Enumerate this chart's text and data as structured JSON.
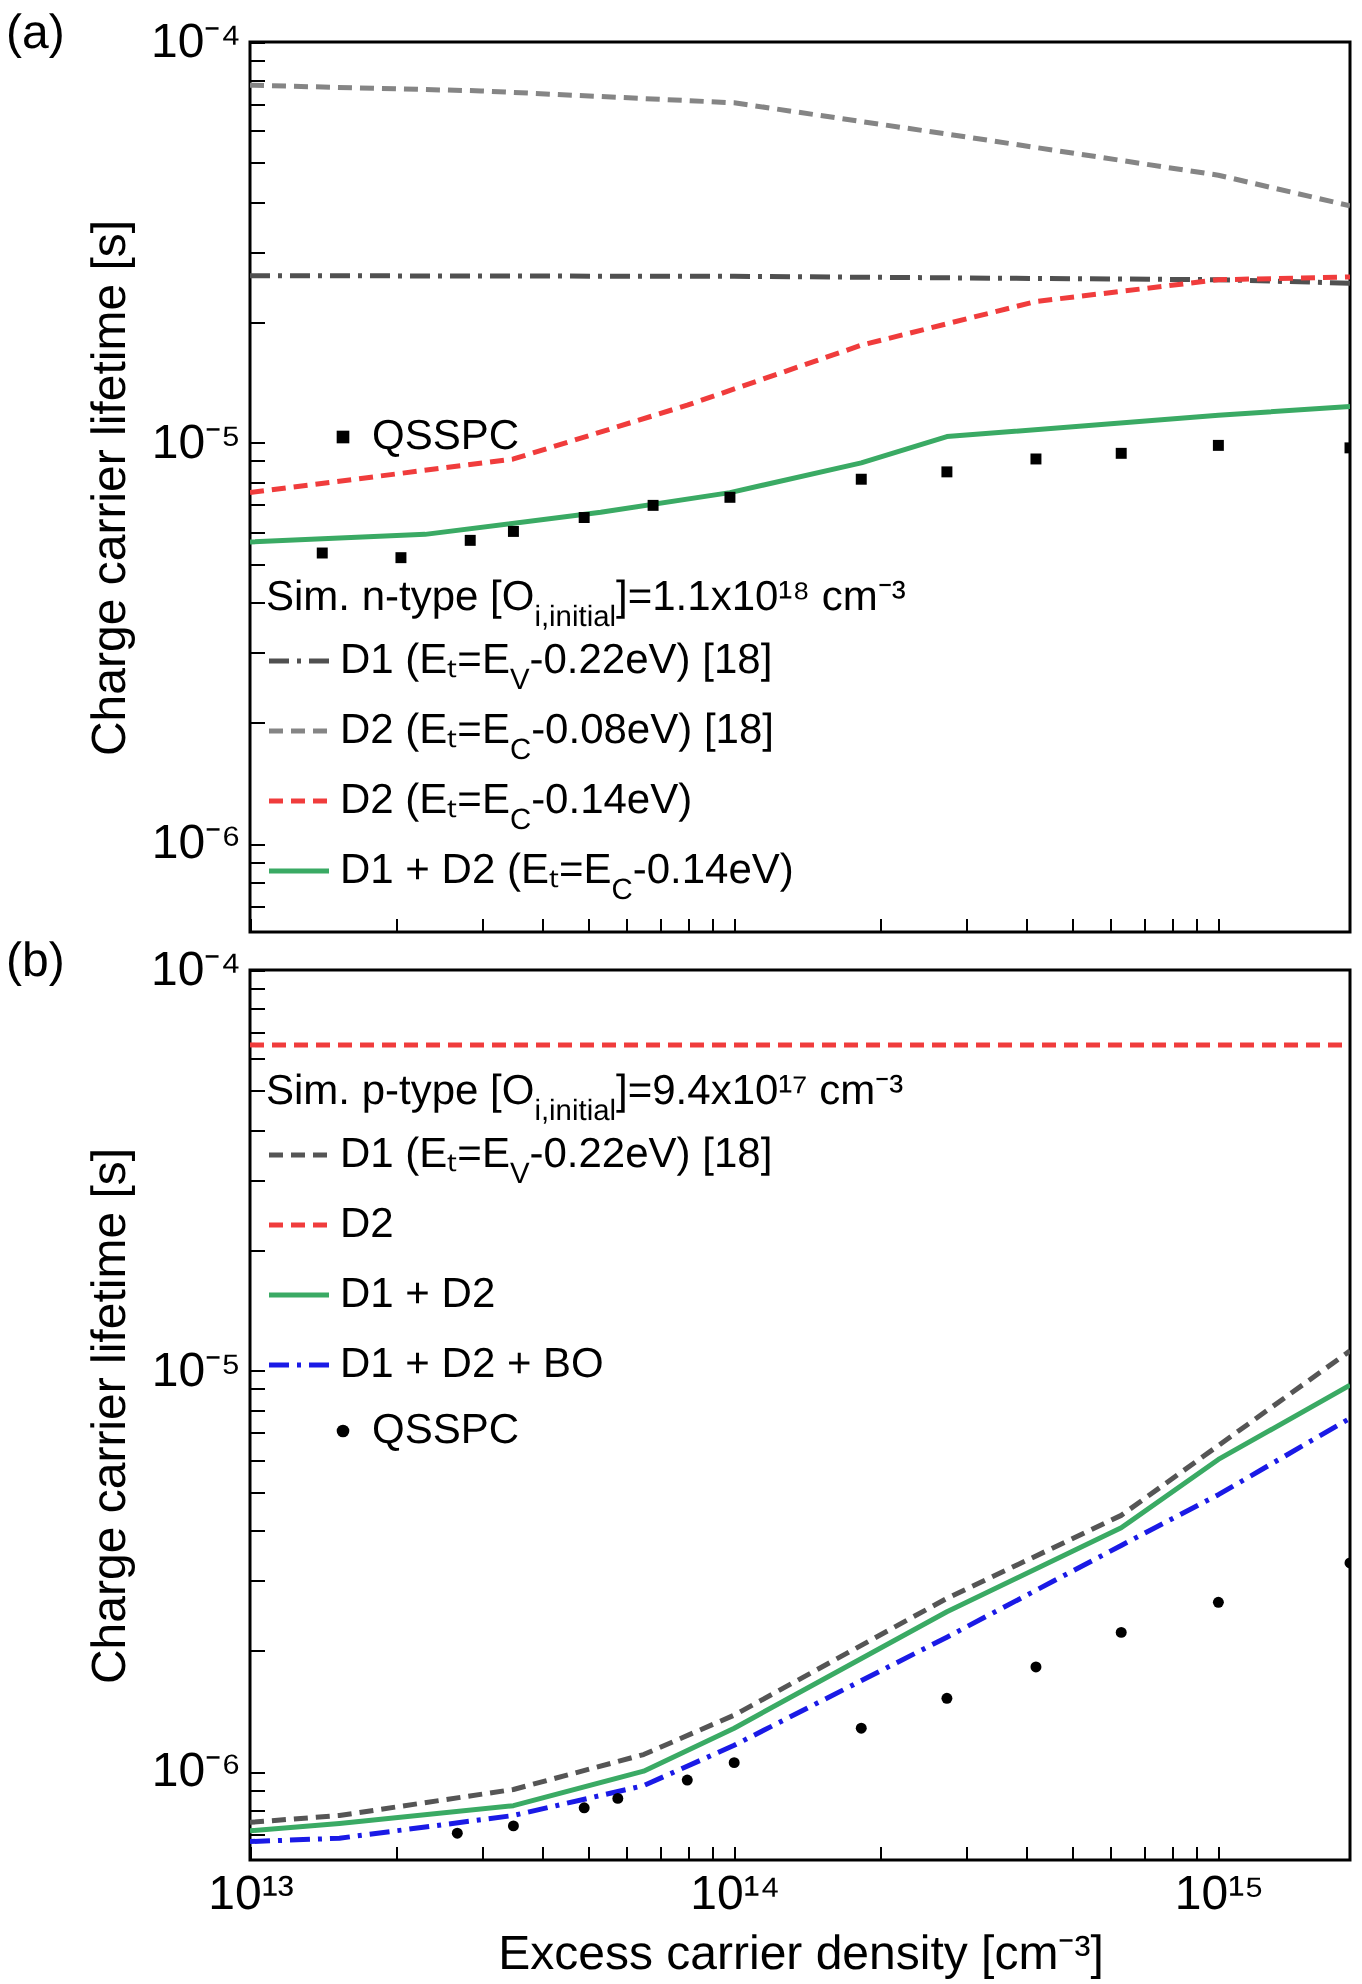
{
  "chart_data": [
    {
      "type": "line",
      "ylabel": "Charge carrier lifetime [s]",
      "legend_title": "Sim. n-type [O$_{i,initial}$]=1.1x10¹⁸ cm⁻³",
      "annotations": [
        "(a)"
      ],
      "xlim": [
        10000000000000.0,
        1870000000000000.0
      ],
      "ylim": [
        6e-07,
        0.0001
      ],
      "log": "xy",
      "legend": "bottom left",
      "tick_labels": "y",
      "xticks": [
        {
          "value": 10000000000000.0,
          "label": null
        },
        {
          "value": 20000000000000.0,
          "label": null
        },
        {
          "value": 30000000000000.0,
          "label": null
        },
        {
          "value": 40000000000000.0,
          "label": null
        },
        {
          "value": 50000000000000.0,
          "label": null
        },
        {
          "value": 60000000000000.0,
          "label": null
        },
        {
          "value": 70000000000000.0,
          "label": null
        },
        {
          "value": 80000000000000.0,
          "label": null
        },
        {
          "value": 90000000000000.0,
          "label": null
        },
        {
          "value": 100000000000000.0,
          "label": null
        },
        {
          "value": 200000000000000.0,
          "label": null
        },
        {
          "value": 300000000000000.0,
          "label": null
        },
        {
          "value": 400000000000000.0,
          "label": null
        },
        {
          "value": 500000000000000.0,
          "label": null
        },
        {
          "value": 600000000000000.0,
          "label": null
        },
        {
          "value": 700000000000000.0,
          "label": null
        },
        {
          "value": 800000000000000.0,
          "label": null
        },
        {
          "value": 900000000000000.0,
          "label": null
        },
        {
          "value": 1000000000000000.0,
          "label": null
        }
      ],
      "yticks": [
        {
          "value": 7e-07,
          "label": null
        },
        {
          "value": 8e-07,
          "label": null
        },
        {
          "value": 9e-07,
          "label": null
        },
        {
          "value": 1e-06,
          "label": "10⁻⁶"
        },
        {
          "value": 2e-06,
          "label": null
        },
        {
          "value": 3e-06,
          "label": null
        },
        {
          "value": 4e-06,
          "label": null
        },
        {
          "value": 5e-06,
          "label": null
        },
        {
          "value": 6e-06,
          "label": null
        },
        {
          "value": 7e-06,
          "label": null
        },
        {
          "value": 8e-06,
          "label": null
        },
        {
          "value": 9e-06,
          "label": null
        },
        {
          "value": 1e-05,
          "label": "10⁻⁵"
        },
        {
          "value": 2e-05,
          "label": null
        },
        {
          "value": 3e-05,
          "label": null
        },
        {
          "value": 4e-05,
          "label": null
        },
        {
          "value": 5e-05,
          "label": null
        },
        {
          "value": 6e-05,
          "label": null
        },
        {
          "value": 7e-05,
          "label": null
        },
        {
          "value": 8e-05,
          "label": null
        },
        {
          "value": 9e-05,
          "label": null
        },
        {
          "value": 0.0001,
          "label": "10⁻⁴"
        }
      ],
      "series": [
        {
          "name": "QSSPC",
          "type": "scatter",
          "marker": "square",
          "color": "#000000",
          "x": [
            14100000000000.0,
            20500000000000.0,
            28500000000000.0,
            35000000000000.0,
            49000000000000.0,
            68000000000000.0,
            98000000000000.0,
            183000000000000.0,
            275000000000000.0,
            420000000000000.0,
            630000000000000.0,
            1000000000000000.0,
            1870000000000000.0
          ],
          "values": [
            5.3e-06,
            5.16e-06,
            5.7e-06,
            6e-06,
            6.5e-06,
            6.97e-06,
            7.3e-06,
            8.1e-06,
            8.45e-06,
            9.1e-06,
            9.4e-06,
            9.84e-06,
            9.7e-06
          ]
        },
        {
          "name": "D1 (Eₜ=E$_{V}$-0.22eV) [18]",
          "line_style": "dashdot",
          "color": "#505050",
          "x": [
            10000000000000.0,
            100000000000000.0,
            1000000000000000.0,
            1870000000000000.0
          ],
          "values": [
            2.61e-05,
            2.6e-05,
            2.55e-05,
            2.5e-05
          ]
        },
        {
          "name": "D2 (Eₜ=E$_{C}$-0.08eV) [18]",
          "line_style": "dashed",
          "color": "#858585",
          "x": [
            10000000000000.0,
            30000000000000.0,
            100000000000000.0,
            300000000000000.0,
            1000000000000000.0,
            1870000000000000.0
          ],
          "values": [
            7.8e-05,
            7.55e-05,
            7.05e-05,
            5.8e-05,
            4.65e-05,
            3.9e-05
          ]
        },
        {
          "name": "D2 (Eₜ=E$_{C}$-0.14eV)",
          "line_style": "dashed",
          "color": "#f03c3c",
          "x": [
            10000000000000.0,
            35000000000000.0,
            80000000000000.0,
            183000000000000.0,
            420000000000000.0,
            1000000000000000.0,
            1870000000000000.0
          ],
          "values": [
            7.5e-06,
            9.1e-06,
            1.24e-05,
            1.75e-05,
            2.25e-05,
            2.55e-05,
            2.59e-05
          ]
        },
        {
          "name": "D1 + D2 (Eₜ=E$_{C}$-0.14eV)",
          "line_style": "solid",
          "color": "#3aaa64",
          "x": [
            10000000000000.0,
            23000000000000.0,
            53000000000000.0,
            98000000000000.0,
            183000000000000.0,
            275000000000000.0,
            1000000000000000.0,
            1870000000000000.0
          ],
          "values": [
            5.65e-06,
            5.9e-06,
            6.7e-06,
            7.5e-06,
            8.9e-06,
            1.035e-05,
            1.17e-05,
            1.23e-05
          ]
        }
      ]
    },
    {
      "type": "line",
      "xlabel": "Excess carrier density [cm⁻³]",
      "ylabel": "Charge carrier lifetime [s]",
      "legend_title": "Sim. p-type [O$_{i,initial}$]=9.4x10¹⁷ cm⁻³",
      "annotations": [
        "(b)"
      ],
      "xlim": [
        10000000000000.0,
        1870000000000000.0
      ],
      "ylim": [
        6e-07,
        0.0001
      ],
      "log": "xy",
      "legend": "top left",
      "xticks": [
        {
          "value": 10000000000000.0,
          "label": "10¹³"
        },
        {
          "value": 20000000000000.0,
          "label": null
        },
        {
          "value": 30000000000000.0,
          "label": null
        },
        {
          "value": 40000000000000.0,
          "label": null
        },
        {
          "value": 50000000000000.0,
          "label": null
        },
        {
          "value": 60000000000000.0,
          "label": null
        },
        {
          "value": 70000000000000.0,
          "label": null
        },
        {
          "value": 80000000000000.0,
          "label": null
        },
        {
          "value": 90000000000000.0,
          "label": null
        },
        {
          "value": 100000000000000.0,
          "label": "10¹⁴"
        },
        {
          "value": 200000000000000.0,
          "label": null
        },
        {
          "value": 300000000000000.0,
          "label": null
        },
        {
          "value": 400000000000000.0,
          "label": null
        },
        {
          "value": 500000000000000.0,
          "label": null
        },
        {
          "value": 600000000000000.0,
          "label": null
        },
        {
          "value": 700000000000000.0,
          "label": null
        },
        {
          "value": 800000000000000.0,
          "label": null
        },
        {
          "value": 900000000000000.0,
          "label": null
        },
        {
          "value": 1000000000000000.0,
          "label": "10¹⁵"
        }
      ],
      "yticks": [
        {
          "value": 7e-07,
          "label": null
        },
        {
          "value": 8e-07,
          "label": null
        },
        {
          "value": 9e-07,
          "label": null
        },
        {
          "value": 1e-06,
          "label": "10⁻⁶"
        },
        {
          "value": 2e-06,
          "label": null
        },
        {
          "value": 3e-06,
          "label": null
        },
        {
          "value": 4e-06,
          "label": null
        },
        {
          "value": 5e-06,
          "label": null
        },
        {
          "value": 6e-06,
          "label": null
        },
        {
          "value": 7e-06,
          "label": null
        },
        {
          "value": 8e-06,
          "label": null
        },
        {
          "value": 9e-06,
          "label": null
        },
        {
          "value": 1e-05,
          "label": "10⁻⁵"
        },
        {
          "value": 2e-05,
          "label": null
        },
        {
          "value": 3e-05,
          "label": null
        },
        {
          "value": 4e-05,
          "label": null
        },
        {
          "value": 5e-05,
          "label": null
        },
        {
          "value": 6e-05,
          "label": null
        },
        {
          "value": 7e-05,
          "label": null
        },
        {
          "value": 8e-05,
          "label": null
        },
        {
          "value": 9e-05,
          "label": null
        },
        {
          "value": 0.0001,
          "label": "10⁻⁴"
        }
      ],
      "series": [
        {
          "name": "D1 (Eₜ=E$_{V}$-0.22eV) [18]",
          "line_style": "dashed",
          "color": "#555555",
          "x": [
            10000000000000.0,
            15300000000000.0,
            35000000000000.0,
            65000000000000.0,
            100000000000000.0,
            275000000000000.0,
            630000000000000.0,
            1000000000000000.0,
            1870000000000000.0
          ],
          "values": [
            7.45e-07,
            7.75e-07,
            9e-07,
            1.1e-06,
            1.38e-06,
            2.7e-06,
            4.35e-06,
            6.5e-06,
            1.12e-05
          ]
        },
        {
          "name": "D2",
          "line_style": "dashed",
          "color": "#f03c3c",
          "x": [
            10000000000000.0,
            1870000000000000.0
          ],
          "values": [
            6.5e-05,
            6.5e-05
          ]
        },
        {
          "name": "D1 + D2",
          "line_style": "solid",
          "color": "#3aaa64",
          "x": [
            10000000000000.0,
            15300000000000.0,
            35000000000000.0,
            65000000000000.0,
            100000000000000.0,
            275000000000000.0,
            630000000000000.0,
            1000000000000000.0,
            1870000000000000.0
          ],
          "values": [
            7.1e-07,
            7.4e-07,
            8.2e-07,
            1e-06,
            1.28e-06,
            2.5e-06,
            4.05e-06,
            6e-06,
            9.2e-06
          ]
        },
        {
          "name": "D1 + D2 + BO",
          "line_style": "dashdot",
          "color": "#1a1ae6",
          "x": [
            10000000000000.0,
            15300000000000.0,
            35000000000000.0,
            65000000000000.0,
            100000000000000.0,
            275000000000000.0,
            630000000000000.0,
            1000000000000000.0,
            1870000000000000.0
          ],
          "values": [
            6.67e-07,
            6.8e-07,
            7.75e-07,
            9.2e-07,
            1.16e-06,
            2.16e-06,
            3.66e-06,
            4.9e-06,
            7.6e-06
          ]
        },
        {
          "name": "QSSPC",
          "type": "scatter",
          "marker": "circle",
          "color": "#000000",
          "x": [
            26800000000000.0,
            35000000000000.0,
            49000000000000.0,
            57500000000000.0,
            80000000000000.0,
            100000000000000.0,
            183000000000000.0,
            275000000000000.0,
            420000000000000.0,
            630000000000000.0,
            1000000000000000.0,
            1870000000000000.0
          ],
          "values": [
            7e-07,
            7.3e-07,
            8.1e-07,
            8.55e-07,
            9.5e-07,
            1.05e-06,
            1.28e-06,
            1.52e-06,
            1.82e-06,
            2.22e-06,
            2.64e-06,
            3.31e-06
          ]
        }
      ]
    }
  ]
}
